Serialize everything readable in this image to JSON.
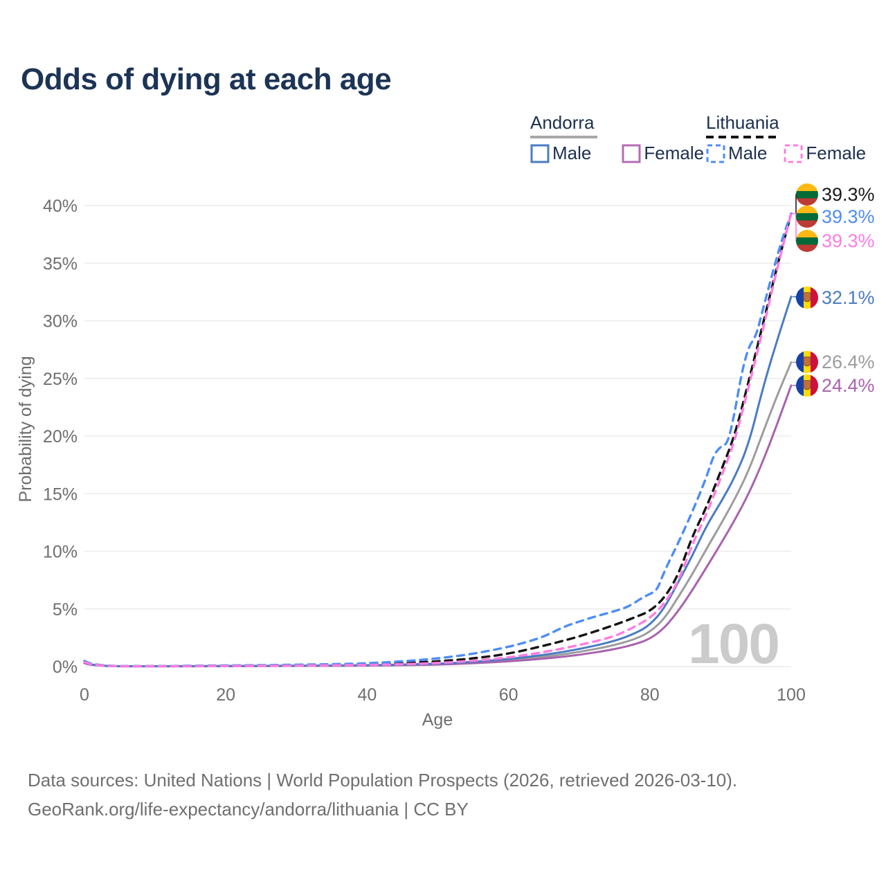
{
  "title": "Odds of dying at each age",
  "legend": {
    "groups": [
      {
        "country": "Andorra",
        "line_style": "solid",
        "underline_color": "#a8a8a8",
        "items": [
          {
            "label": "Male",
            "color": "#4a7cc2"
          },
          {
            "label": "Female",
            "color": "#b46cb4"
          }
        ]
      },
      {
        "country": "Lithuania",
        "line_style": "dashed",
        "underline_color": "#141414",
        "items": [
          {
            "label": "Male",
            "color": "#4d8df5"
          },
          {
            "label": "Female",
            "color": "#ff7ce0"
          }
        ]
      }
    ]
  },
  "footer": {
    "line1": "Data sources: United Nations | World Population Prospects (2026, retrieved 2026-03-10).",
    "line2": "GeoRank.org/life-expectancy/andorra/lithuania | CC BY"
  },
  "chart_data": {
    "type": "line",
    "title": "Odds of dying at each age",
    "xlabel": "Age",
    "ylabel": "Probability of dying",
    "xlim": [
      0,
      100
    ],
    "ylim": [
      0,
      41
    ],
    "xticks": [
      0,
      20,
      40,
      60,
      80,
      100
    ],
    "yticks": [
      0,
      5,
      10,
      15,
      20,
      25,
      30,
      35,
      40
    ],
    "ytick_suffix": "%",
    "grid": true,
    "legend_position": "top-right",
    "watermark": "100",
    "series": [
      {
        "name": "andorra-both",
        "country": "Andorra",
        "sex": "both",
        "color": "#9c9c9c",
        "dash": "solid",
        "points": [
          [
            0,
            0.32
          ],
          [
            1,
            0.035
          ],
          [
            10,
            0.018
          ],
          [
            20,
            0.04
          ],
          [
            30,
            0.06
          ],
          [
            40,
            0.095
          ],
          [
            45,
            0.14
          ],
          [
            50,
            0.21
          ],
          [
            55,
            0.34
          ],
          [
            60,
            0.55
          ],
          [
            65,
            0.84
          ],
          [
            70,
            1.25
          ],
          [
            75,
            1.85
          ],
          [
            78,
            2.4
          ],
          [
            80,
            3.0
          ],
          [
            82,
            4.1
          ],
          [
            84,
            6.0
          ],
          [
            86,
            8.0
          ],
          [
            88,
            10.2
          ],
          [
            90,
            12.3
          ],
          [
            92,
            14.5
          ],
          [
            94,
            17.0
          ],
          [
            96,
            20.3
          ],
          [
            98,
            23.5
          ],
          [
            100,
            26.4
          ]
        ]
      },
      {
        "name": "andorra-female",
        "country": "Andorra",
        "sex": "female",
        "color": "#a962ad",
        "dash": "solid",
        "points": [
          [
            0,
            0.3
          ],
          [
            1,
            0.03
          ],
          [
            10,
            0.015
          ],
          [
            20,
            0.035
          ],
          [
            30,
            0.05
          ],
          [
            40,
            0.08
          ],
          [
            45,
            0.12
          ],
          [
            50,
            0.17
          ],
          [
            55,
            0.28
          ],
          [
            60,
            0.45
          ],
          [
            65,
            0.68
          ],
          [
            70,
            1.0
          ],
          [
            75,
            1.5
          ],
          [
            78,
            1.95
          ],
          [
            80,
            2.4
          ],
          [
            82,
            3.3
          ],
          [
            84,
            4.8
          ],
          [
            86,
            6.6
          ],
          [
            88,
            8.6
          ],
          [
            90,
            10.6
          ],
          [
            92,
            12.7
          ],
          [
            94,
            15.0
          ],
          [
            96,
            17.8
          ],
          [
            98,
            21.0
          ],
          [
            100,
            24.4
          ]
        ]
      },
      {
        "name": "andorra-male",
        "country": "Andorra",
        "sex": "male",
        "color": "#4a7cc2",
        "dash": "solid",
        "points": [
          [
            0,
            0.35
          ],
          [
            1,
            0.04
          ],
          [
            10,
            0.02
          ],
          [
            20,
            0.05
          ],
          [
            30,
            0.07
          ],
          [
            40,
            0.11
          ],
          [
            45,
            0.17
          ],
          [
            50,
            0.25
          ],
          [
            55,
            0.4
          ],
          [
            60,
            0.65
          ],
          [
            65,
            1.0
          ],
          [
            70,
            1.5
          ],
          [
            75,
            2.2
          ],
          [
            78,
            2.9
          ],
          [
            80,
            3.6
          ],
          [
            82,
            5.0
          ],
          [
            84,
            7.3
          ],
          [
            86,
            9.6
          ],
          [
            88,
            12.2
          ],
          [
            90,
            14.2
          ],
          [
            92,
            16.4
          ],
          [
            94,
            19.3
          ],
          [
            96,
            24.2
          ],
          [
            98,
            28.3
          ],
          [
            100,
            32.1
          ]
        ]
      },
      {
        "name": "lithuania-both",
        "country": "Lithuania",
        "sex": "both",
        "color": "#141414",
        "dash": "dashed",
        "points": [
          [
            0,
            0.45
          ],
          [
            1,
            0.05
          ],
          [
            10,
            0.025
          ],
          [
            20,
            0.08
          ],
          [
            30,
            0.11
          ],
          [
            40,
            0.18
          ],
          [
            45,
            0.3
          ],
          [
            50,
            0.45
          ],
          [
            55,
            0.7
          ],
          [
            60,
            1.1
          ],
          [
            65,
            1.8
          ],
          [
            70,
            2.6
          ],
          [
            75,
            3.6
          ],
          [
            78,
            4.3
          ],
          [
            80,
            4.8
          ],
          [
            82,
            5.9
          ],
          [
            84,
            7.9
          ],
          [
            86,
            11.3
          ],
          [
            88,
            13.8
          ],
          [
            90,
            16.9
          ],
          [
            92,
            20.0
          ],
          [
            94,
            24.8
          ],
          [
            96,
            29.7
          ],
          [
            98,
            34.7
          ],
          [
            100,
            39.3
          ]
        ]
      },
      {
        "name": "lithuania-male",
        "country": "Lithuania",
        "sex": "male",
        "color": "#4d8df5",
        "dash": "dashed",
        "points": [
          [
            0,
            0.5
          ],
          [
            1,
            0.06
          ],
          [
            10,
            0.03
          ],
          [
            15,
            0.07
          ],
          [
            20,
            0.1
          ],
          [
            25,
            0.12
          ],
          [
            30,
            0.16
          ],
          [
            35,
            0.2
          ],
          [
            40,
            0.28
          ],
          [
            45,
            0.45
          ],
          [
            50,
            0.7
          ],
          [
            55,
            1.1
          ],
          [
            60,
            1.7
          ],
          [
            63,
            2.2
          ],
          [
            65,
            2.6
          ],
          [
            68,
            3.5
          ],
          [
            70,
            3.9
          ],
          [
            72,
            4.3
          ],
          [
            75,
            4.8
          ],
          [
            77,
            5.2
          ],
          [
            79,
            6.0
          ],
          [
            80,
            6.3
          ],
          [
            81,
            6.6
          ],
          [
            82,
            8.2
          ],
          [
            84,
            10.7
          ],
          [
            86,
            13.4
          ],
          [
            88,
            16.4
          ],
          [
            89,
            18.3
          ],
          [
            90,
            19.1
          ],
          [
            91,
            19.3
          ],
          [
            92,
            22.0
          ],
          [
            93,
            25.5
          ],
          [
            94,
            27.8
          ],
          [
            95,
            28.6
          ],
          [
            96,
            31.0
          ],
          [
            97,
            33.3
          ],
          [
            98,
            35.6
          ],
          [
            99,
            37.6
          ],
          [
            100,
            39.3
          ]
        ]
      },
      {
        "name": "lithuania-female",
        "country": "Lithuania",
        "sex": "female",
        "color": "#ff7ce0",
        "dash": "dashed",
        "points": [
          [
            0,
            0.4
          ],
          [
            1,
            0.04
          ],
          [
            10,
            0.02
          ],
          [
            20,
            0.05
          ],
          [
            30,
            0.08
          ],
          [
            40,
            0.13
          ],
          [
            45,
            0.2
          ],
          [
            50,
            0.3
          ],
          [
            55,
            0.5
          ],
          [
            60,
            0.78
          ],
          [
            65,
            1.25
          ],
          [
            70,
            1.85
          ],
          [
            75,
            2.6
          ],
          [
            78,
            3.5
          ],
          [
            80,
            4.2
          ],
          [
            82,
            5.4
          ],
          [
            84,
            7.3
          ],
          [
            86,
            10.6
          ],
          [
            88,
            13.2
          ],
          [
            90,
            16.3
          ],
          [
            92,
            19.5
          ],
          [
            94,
            24.3
          ],
          [
            96,
            29.2
          ],
          [
            98,
            34.5
          ],
          [
            100,
            39.3
          ]
        ]
      }
    ],
    "end_labels": [
      {
        "text": "39.3%",
        "value": 39.3,
        "color": "#1a1a1a",
        "flag": "lithuania",
        "series": "lithuania-both"
      },
      {
        "text": "39.3%",
        "value": 39.3,
        "color": "#4d8df5",
        "flag": "lithuania",
        "series": "lithuania-male"
      },
      {
        "text": "39.3%",
        "value": 39.3,
        "color": "#ff7ce0",
        "flag": "lithuania",
        "series": "lithuania-female"
      },
      {
        "text": "32.1%",
        "value": 32.1,
        "color": "#4a7cc2",
        "flag": "andorra",
        "series": "andorra-male"
      },
      {
        "text": "26.4%",
        "value": 26.4,
        "color": "#9c9c9c",
        "flag": "andorra",
        "series": "andorra-both"
      },
      {
        "text": "24.4%",
        "value": 24.4,
        "color": "#a962ad",
        "flag": "andorra",
        "series": "andorra-female"
      }
    ]
  }
}
